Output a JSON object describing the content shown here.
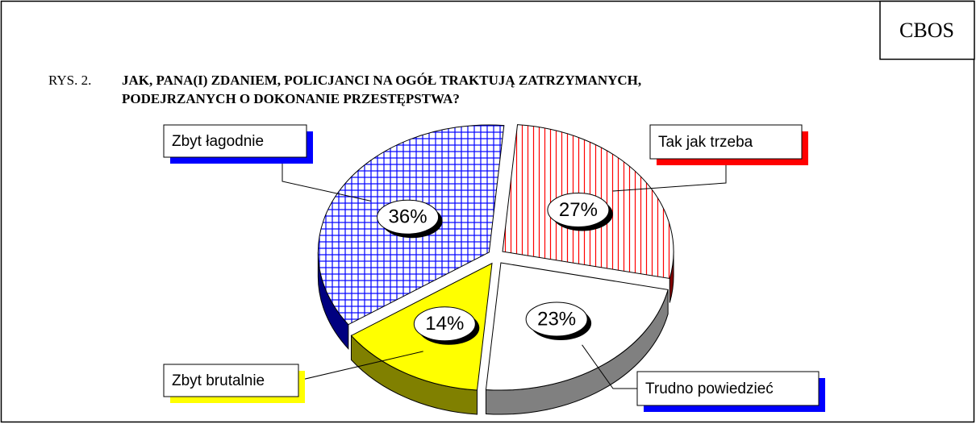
{
  "chart_data": {
    "type": "pie",
    "source": "CBOS",
    "figure_label": "RYS. 2.",
    "title": [
      "JAK, PANA(I) ZDANIEM, POLICJANCI NA OGÓŁ TRAKTUJĄ ZATRZYMANYCH,",
      "PODEJRZANYCH O DOKONANIE PRZESTĘPSTWA?"
    ],
    "categories": [
      "Tak jak trzeba",
      "Trudno powiedzieć",
      "Zbyt brutalnie",
      "Zbyt łagodnie"
    ],
    "values": [
      27,
      23,
      14,
      36
    ],
    "value_labels": [
      "27%",
      "23%",
      "14%",
      "36%"
    ],
    "colors": [
      "#ff0000",
      "#ffffff",
      "#ffff00",
      "#0000ff"
    ]
  }
}
